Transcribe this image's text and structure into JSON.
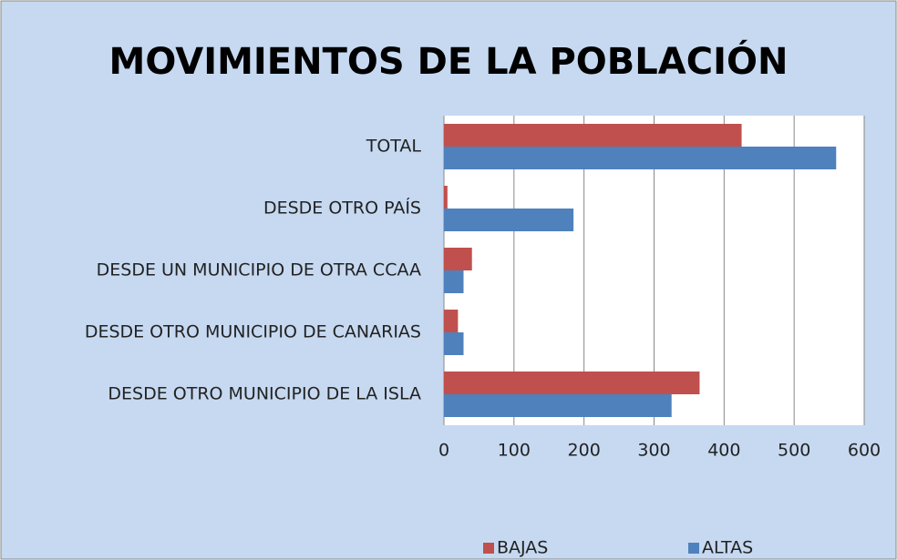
{
  "chart_data": {
    "type": "barh",
    "title": "MOVIMIENTOS DE LA POBLACIÓN",
    "categories": [
      "TOTAL",
      "DESDE OTRO PAÍS",
      "DESDE UN MUNICIPIO DE OTRA CCAA",
      "DESDE OTRO MUNICIPIO DE CANARIAS",
      "DESDE OTRO MUNICIPIO DE LA ISLA"
    ],
    "series": [
      {
        "name": "BAJAS",
        "color": "#c0504d",
        "values": [
          425,
          5,
          40,
          20,
          365
        ]
      },
      {
        "name": "ALTAS",
        "color": "#4f81bd",
        "values": [
          560,
          185,
          28,
          28,
          325
        ]
      }
    ],
    "xlim": [
      0,
      600
    ],
    "xticks": [
      0,
      100,
      200,
      300,
      400,
      500,
      600
    ],
    "grid": true,
    "legend": "bottom"
  }
}
